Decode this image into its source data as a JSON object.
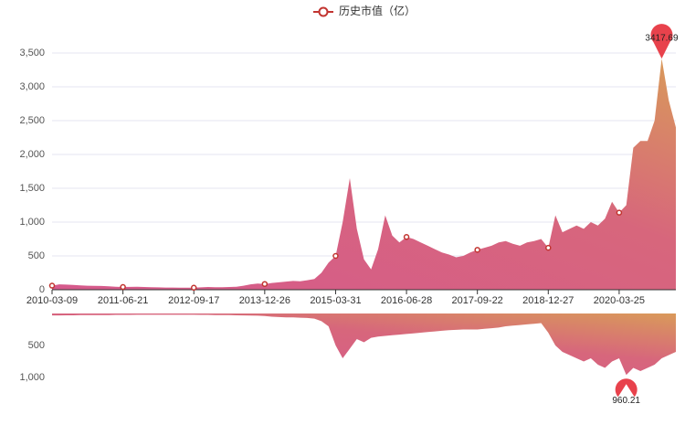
{
  "chart_data": [
    {
      "type": "area",
      "categories": [
        "2010-03-09",
        null,
        null,
        null,
        null,
        null,
        null,
        null,
        null,
        null,
        "2011-06-21",
        null,
        null,
        null,
        null,
        null,
        null,
        null,
        null,
        null,
        "2012-09-17",
        null,
        null,
        null,
        null,
        null,
        null,
        null,
        null,
        null,
        "2013-12-26",
        null,
        null,
        null,
        null,
        null,
        null,
        null,
        null,
        null,
        "2015-03-31",
        null,
        null,
        null,
        null,
        null,
        null,
        null,
        null,
        null,
        "2016-06-28",
        null,
        null,
        null,
        null,
        null,
        null,
        null,
        null,
        null,
        "2017-09-22",
        null,
        null,
        null,
        null,
        null,
        null,
        null,
        null,
        null,
        "2018-12-27",
        null,
        null,
        null,
        null,
        null,
        null,
        null,
        null,
        null,
        "2020-03-25",
        null,
        null,
        null,
        null,
        null,
        null,
        null,
        null
      ],
      "series": [
        {
          "name": "历史市值（亿）",
          "color": "#c23531",
          "values": [
            60,
            80,
            75,
            70,
            65,
            60,
            58,
            55,
            50,
            45,
            40,
            42,
            45,
            40,
            38,
            35,
            33,
            32,
            30,
            30,
            30,
            35,
            40,
            38,
            36,
            40,
            45,
            60,
            80,
            90,
            85,
            100,
            110,
            120,
            130,
            125,
            140,
            160,
            250,
            400,
            500,
            1000,
            1650,
            900,
            450,
            300,
            600,
            1100,
            800,
            700,
            780,
            750,
            700,
            650,
            600,
            550,
            520,
            480,
            500,
            550,
            590,
            620,
            650,
            700,
            720,
            680,
            650,
            700,
            720,
            750,
            620,
            1100,
            850,
            900,
            950,
            900,
            1000,
            950,
            1050,
            1300,
            1140,
            1250,
            2100,
            2200,
            2200,
            2500,
            3417.69,
            2800,
            2400
          ]
        }
      ],
      "ylim": [
        0,
        3500
      ],
      "yticks": [
        0,
        500,
        {
          "value": 1000,
          "label": "1,000"
        },
        {
          "value": 1500,
          "label": "1,500"
        },
        {
          "value": 2000,
          "label": "2,000"
        },
        {
          "value": 2500,
          "label": "2,500"
        },
        {
          "value": 3000,
          "label": "3,000"
        },
        {
          "value": 3500,
          "label": "3,500"
        }
      ],
      "grid": true,
      "mark_max": true,
      "legend": "top"
    },
    {
      "type": "area",
      "inverted": true,
      "series": [
        {
          "color": "#c23531",
          "values": [
            30,
            30,
            28,
            28,
            26,
            25,
            25,
            24,
            24,
            22,
            22,
            22,
            20,
            20,
            20,
            20,
            20,
            20,
            20,
            20,
            20,
            22,
            22,
            24,
            24,
            26,
            28,
            30,
            32,
            35,
            40,
            50,
            55,
            60,
            60,
            65,
            70,
            80,
            120,
            200,
            500,
            700,
            550,
            400,
            450,
            380,
            360,
            350,
            340,
            330,
            320,
            310,
            300,
            290,
            280,
            270,
            260,
            255,
            250,
            250,
            250,
            240,
            230,
            220,
            200,
            190,
            180,
            170,
            160,
            150,
            300,
            500,
            600,
            650,
            700,
            750,
            700,
            800,
            850,
            750,
            700,
            960.21,
            850,
            900,
            850,
            800,
            700,
            650,
            600
          ]
        }
      ],
      "ylim": [
        0,
        1000
      ],
      "yticks": [
        500,
        {
          "value": 1000,
          "label": "1,000"
        }
      ],
      "mark_max": true
    }
  ]
}
